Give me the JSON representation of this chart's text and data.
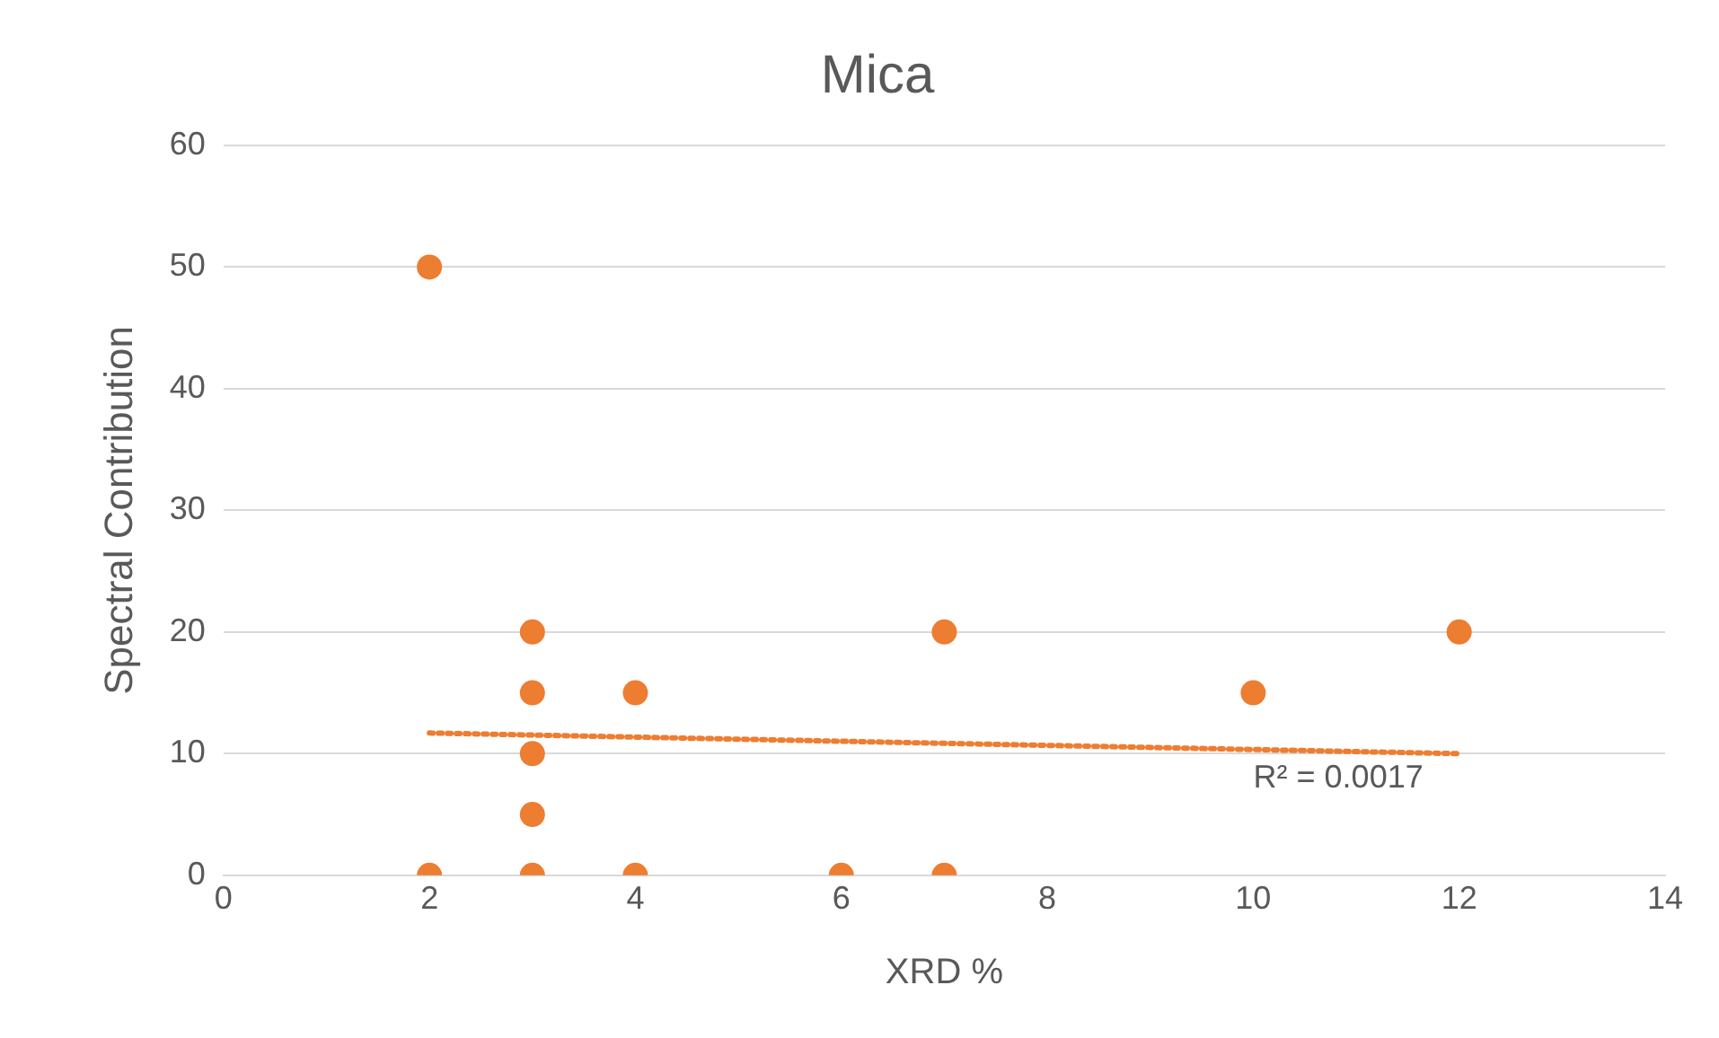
{
  "chart_data": {
    "type": "scatter",
    "title": "Mica",
    "xlabel": "XRD %",
    "ylabel": "Spectral Contribution",
    "xlim": [
      0,
      14
    ],
    "xticks": [
      0,
      2,
      4,
      6,
      8,
      10,
      12,
      14
    ],
    "ylim": [
      0,
      60
    ],
    "yticks": [
      0,
      10,
      20,
      30,
      40,
      50,
      60
    ],
    "grid": "y",
    "series": [
      {
        "type": "scatter",
        "color": "#ed7d31",
        "marker": "circle",
        "x": [
          2,
          2,
          3,
          3,
          3,
          3,
          3,
          4,
          4,
          6,
          7,
          7,
          10,
          12
        ],
        "values": [
          50,
          0,
          20,
          15,
          10,
          5,
          0,
          15,
          0,
          0,
          20,
          0,
          15,
          20
        ]
      },
      {
        "type": "line",
        "color": "#ed7d31",
        "marker": "none",
        "line_style": "dotted",
        "x": [
          2,
          12
        ],
        "values": [
          11.7,
          10.0
        ]
      }
    ],
    "annotations": [
      "R² = 0.0017"
    ]
  }
}
